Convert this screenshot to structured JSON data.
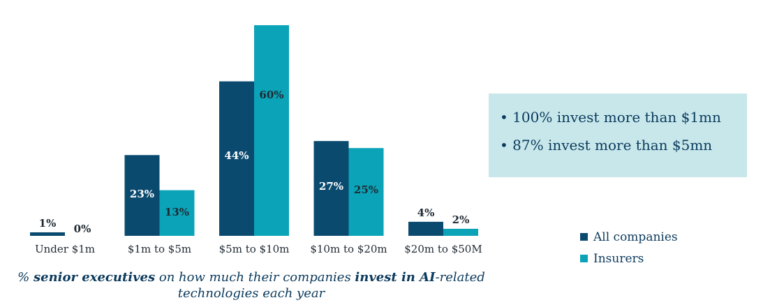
{
  "chart_data": {
    "type": "bar",
    "categories": [
      "Under $1m",
      "$1m to $5m",
      "$5m to $10m",
      "$10m to $20m",
      "$20m to $50M"
    ],
    "series": [
      {
        "name": "All companies",
        "values": [
          1,
          23,
          44,
          27,
          4
        ],
        "color": "#0b4a6f",
        "labels": [
          "1%",
          "23%",
          "44%",
          "27%",
          "4%"
        ]
      },
      {
        "name": "Insurers",
        "values": [
          0,
          13,
          60,
          25,
          2
        ],
        "color": "#0ba3b7",
        "labels": [
          "0%",
          "13%",
          "60%",
          "25%",
          "2%"
        ]
      }
    ],
    "ylim": [
      0,
      63
    ],
    "grid": false,
    "legend_position": "right",
    "caption": {
      "prefix": "% ",
      "bold1": "senior executives",
      "middle": " on how much their companies ",
      "bold2": "invest in AI",
      "suffix": "-related",
      "line2": "technologies each year"
    }
  },
  "callout": {
    "lines": [
      "• 100% invest more than $1mn",
      "• 87% invest more than $5mn"
    ]
  },
  "legend": {
    "items": [
      {
        "label": "All companies",
        "color": "#0b4a6f"
      },
      {
        "label": "Insurers",
        "color": "#0ba3b7"
      }
    ]
  }
}
